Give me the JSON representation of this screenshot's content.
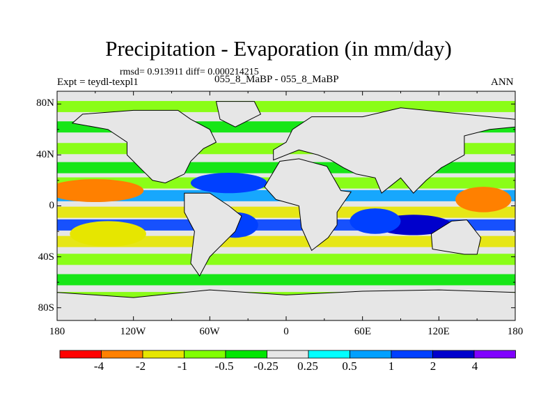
{
  "title": "Precipitation - Evaporation (in mm/day)",
  "stats": "rmsd= 0.913911  diff= 0.000214215",
  "expt": "Expt = teydl-texpl1",
  "case": "055_8_MaBP - 055_8_MaBP",
  "season": "ANN",
  "lat_labels": [
    "80N",
    "40N",
    "0",
    "40S",
    "80S"
  ],
  "lon_labels": [
    "180",
    "120W",
    "60W",
    "0",
    "60E",
    "120E",
    "180"
  ],
  "colorbar": {
    "colors": [
      "#ff0000",
      "#ff8000",
      "#e6e600",
      "#80ff00",
      "#00e600",
      "#e6e6e6",
      "#00ffff",
      "#00a0ff",
      "#0040ff",
      "#0000cc",
      "#8000ff"
    ],
    "labels": [
      "-4",
      "-2",
      "-1",
      "-0.5",
      "-0.25",
      "0.25",
      "0.5",
      "1",
      "2",
      "4"
    ]
  },
  "bands": [
    {
      "lat": 78,
      "color": "#80ff00"
    },
    {
      "lat": 62,
      "color": "#00e600"
    },
    {
      "lat": 45,
      "color": "#80ff00"
    },
    {
      "lat": 30,
      "color": "#00e600"
    },
    {
      "lat": 18,
      "color": "#80ff00"
    },
    {
      "lat": 8,
      "color": "#00a0ff"
    },
    {
      "lat": -5,
      "color": "#e6e600"
    },
    {
      "lat": -15,
      "color": "#0040ff"
    },
    {
      "lat": -28,
      "color": "#e6e600"
    },
    {
      "lat": -42,
      "color": "#80ff00"
    },
    {
      "lat": -58,
      "color": "#00e600"
    },
    {
      "lat": -72,
      "color": "#80ff00"
    }
  ],
  "patches": [
    {
      "lon": -150,
      "lat": 12,
      "rlon": 22,
      "rlat": 6,
      "color": "#ff0000"
    },
    {
      "lon": -150,
      "lat": 12,
      "rlon": 38,
      "rlat": 9,
      "color": "#ff8000"
    },
    {
      "lon": -140,
      "lat": -22,
      "rlon": 30,
      "rlat": 10,
      "color": "#e6e600"
    },
    {
      "lon": 155,
      "lat": 5,
      "rlon": 22,
      "rlat": 10,
      "color": "#ff8000"
    },
    {
      "lon": -45,
      "lat": 18,
      "rlon": 30,
      "rlat": 8,
      "color": "#0040ff"
    },
    {
      "lon": -40,
      "lat": -15,
      "rlon": 18,
      "rlat": 10,
      "color": "#0040ff"
    },
    {
      "lon": 100,
      "lat": -15,
      "rlon": 30,
      "rlat": 8,
      "color": "#0000cc"
    },
    {
      "lon": 70,
      "lat": -12,
      "rlon": 20,
      "rlat": 10,
      "color": "#0040ff"
    },
    {
      "lon": 25,
      "lat": 2,
      "rlon": 12,
      "rlat": 12,
      "color": "#e6e600"
    },
    {
      "lon": 15,
      "lat": 25,
      "rlon": 15,
      "rlat": 6,
      "color": "#00e600"
    }
  ],
  "continents": [
    {
      "name": "north-america",
      "points": [
        [
          -168,
          65
        ],
        [
          -160,
          72
        ],
        [
          -120,
          75
        ],
        [
          -85,
          75
        ],
        [
          -75,
          68
        ],
        [
          -60,
          60
        ],
        [
          -55,
          50
        ],
        [
          -65,
          45
        ],
        [
          -75,
          35
        ],
        [
          -80,
          25
        ],
        [
          -95,
          18
        ],
        [
          -105,
          20
        ],
        [
          -115,
          30
        ],
        [
          -125,
          40
        ],
        [
          -125,
          50
        ],
        [
          -140,
          60
        ]
      ]
    },
    {
      "name": "greenland",
      "points": [
        [
          -55,
          82
        ],
        [
          -25,
          82
        ],
        [
          -20,
          72
        ],
        [
          -40,
          62
        ],
        [
          -52,
          68
        ]
      ]
    },
    {
      "name": "south-america",
      "points": [
        [
          -80,
          10
        ],
        [
          -60,
          10
        ],
        [
          -45,
          0
        ],
        [
          -35,
          -8
        ],
        [
          -40,
          -20
        ],
        [
          -50,
          -30
        ],
        [
          -60,
          -40
        ],
        [
          -68,
          -55
        ],
        [
          -75,
          -45
        ],
        [
          -72,
          -20
        ],
        [
          -80,
          -5
        ]
      ]
    },
    {
      "name": "africa",
      "points": [
        [
          -17,
          15
        ],
        [
          -5,
          35
        ],
        [
          10,
          37
        ],
        [
          32,
          31
        ],
        [
          43,
          12
        ],
        [
          51,
          11
        ],
        [
          40,
          -5
        ],
        [
          40,
          -15
        ],
        [
          33,
          -25
        ],
        [
          20,
          -35
        ],
        [
          12,
          -17
        ],
        [
          10,
          0
        ],
        [
          -8,
          5
        ]
      ]
    },
    {
      "name": "eurasia",
      "points": [
        [
          -10,
          36
        ],
        [
          -10,
          44
        ],
        [
          0,
          50
        ],
        [
          5,
          60
        ],
        [
          20,
          70
        ],
        [
          60,
          70
        ],
        [
          90,
          77
        ],
        [
          140,
          72
        ],
        [
          180,
          68
        ],
        [
          180,
          62
        ],
        [
          160,
          60
        ],
        [
          140,
          55
        ],
        [
          140,
          40
        ],
        [
          122,
          30
        ],
        [
          110,
          20
        ],
        [
          100,
          10
        ],
        [
          90,
          22
        ],
        [
          75,
          10
        ],
        [
          70,
          22
        ],
        [
          55,
          25
        ],
        [
          45,
          30
        ],
        [
          35,
          36
        ],
        [
          25,
          40
        ],
        [
          10,
          44
        ]
      ]
    },
    {
      "name": "australia",
      "points": [
        [
          114,
          -22
        ],
        [
          130,
          -12
        ],
        [
          142,
          -11
        ],
        [
          153,
          -25
        ],
        [
          150,
          -38
        ],
        [
          140,
          -38
        ],
        [
          115,
          -34
        ]
      ]
    },
    {
      "name": "antarctica",
      "points": [
        [
          -180,
          -68
        ],
        [
          -120,
          -72
        ],
        [
          -60,
          -66
        ],
        [
          0,
          -70
        ],
        [
          60,
          -67
        ],
        [
          120,
          -66
        ],
        [
          180,
          -68
        ],
        [
          180,
          -90
        ],
        [
          -180,
          -90
        ]
      ]
    }
  ]
}
